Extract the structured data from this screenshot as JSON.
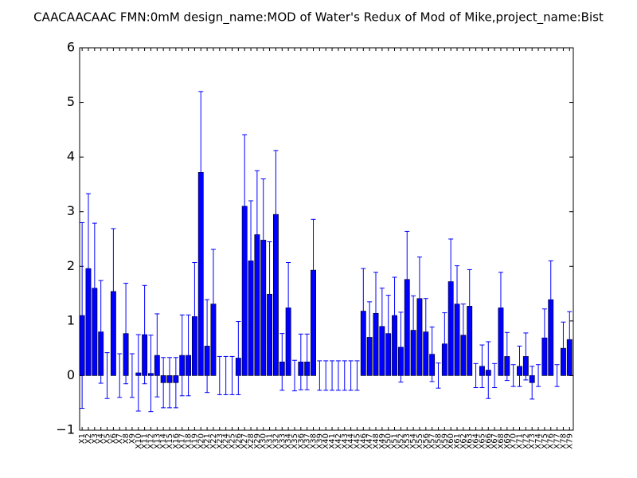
{
  "chart_data": {
    "type": "bar",
    "title": "CAACAACAAC  FMN:0mM  design_name:MOD of Water's Redux of Mod of Mike,project_name:Bist",
    "categories": [
      "X1",
      "X2",
      "X3",
      "X4",
      "X5",
      "X6",
      "X7",
      "X8",
      "X9",
      "X10",
      "X11",
      "X12",
      "X13",
      "X14",
      "X15",
      "X16",
      "X17",
      "X18",
      "X19",
      "X20",
      "X21",
      "X22",
      "X23",
      "X24",
      "X25",
      "X26",
      "X27",
      "X28",
      "X29",
      "X30",
      "X31",
      "X32",
      "X33",
      "X34",
      "X35",
      "X36",
      "X37",
      "X38",
      "X39",
      "X40",
      "X41",
      "X42",
      "X43",
      "X44",
      "X45",
      "X46",
      "X47",
      "X48",
      "X49",
      "X50",
      "X51",
      "X52",
      "X53",
      "X54",
      "X55",
      "X56",
      "X57",
      "X58",
      "X59",
      "X60",
      "X61",
      "X62",
      "X63",
      "X64",
      "X65",
      "X66",
      "X67",
      "X68",
      "X69",
      "X70",
      "X71",
      "X72",
      "X73",
      "X74",
      "X75",
      "X76",
      "X77",
      "X78",
      "X79"
    ],
    "values": [
      1.1,
      1.96,
      1.6,
      0.8,
      0.0,
      1.54,
      0.0,
      0.77,
      0.0,
      0.05,
      0.75,
      0.04,
      0.37,
      -0.13,
      -0.13,
      -0.13,
      0.37,
      0.37,
      1.08,
      3.72,
      0.54,
      1.31,
      0.0,
      0.0,
      0.0,
      0.32,
      3.1,
      2.1,
      2.58,
      2.48,
      1.49,
      2.95,
      0.25,
      1.24,
      0.0,
      0.25,
      0.25,
      1.93,
      0.0,
      0.0,
      0.0,
      0.0,
      0.0,
      0.0,
      0.0,
      1.18,
      0.7,
      1.14,
      0.9,
      0.77,
      1.1,
      0.52,
      1.76,
      0.83,
      1.41,
      0.8,
      0.39,
      0.0,
      0.58,
      1.72,
      1.31,
      0.74,
      1.27,
      0.0,
      0.17,
      0.1,
      0.0,
      1.24,
      0.35,
      0.0,
      0.17,
      0.35,
      -0.13,
      0.0,
      0.69,
      1.39,
      0.0,
      0.5,
      0.66
    ],
    "errors": [
      1.7,
      1.37,
      1.19,
      0.94,
      0.42,
      1.15,
      0.4,
      0.92,
      0.4,
      0.7,
      0.9,
      0.7,
      0.76,
      0.46,
      0.46,
      0.46,
      0.74,
      0.74,
      0.99,
      1.48,
      0.85,
      1.0,
      0.35,
      0.35,
      0.35,
      0.67,
      1.31,
      1.1,
      1.17,
      1.12,
      0.96,
      1.17,
      0.52,
      0.83,
      0.28,
      0.51,
      0.51,
      0.93,
      0.27,
      0.27,
      0.27,
      0.27,
      0.27,
      0.27,
      0.27,
      0.78,
      0.65,
      0.75,
      0.7,
      0.7,
      0.7,
      0.64,
      0.88,
      0.63,
      0.76,
      0.61,
      0.5,
      0.23,
      0.57,
      0.78,
      0.7,
      0.57,
      0.67,
      0.22,
      0.39,
      0.52,
      0.22,
      0.65,
      0.44,
      0.2,
      0.37,
      0.43,
      0.3,
      0.2,
      0.53,
      0.71,
      0.2,
      0.48,
      0.51
    ],
    "color": "#0000ff",
    "error_color": "#0000ff",
    "ylim": [
      -1,
      6
    ],
    "yticks": [
      {
        "value": -1,
        "label": "−1"
      },
      0,
      1,
      2,
      3,
      4,
      5,
      6
    ]
  }
}
